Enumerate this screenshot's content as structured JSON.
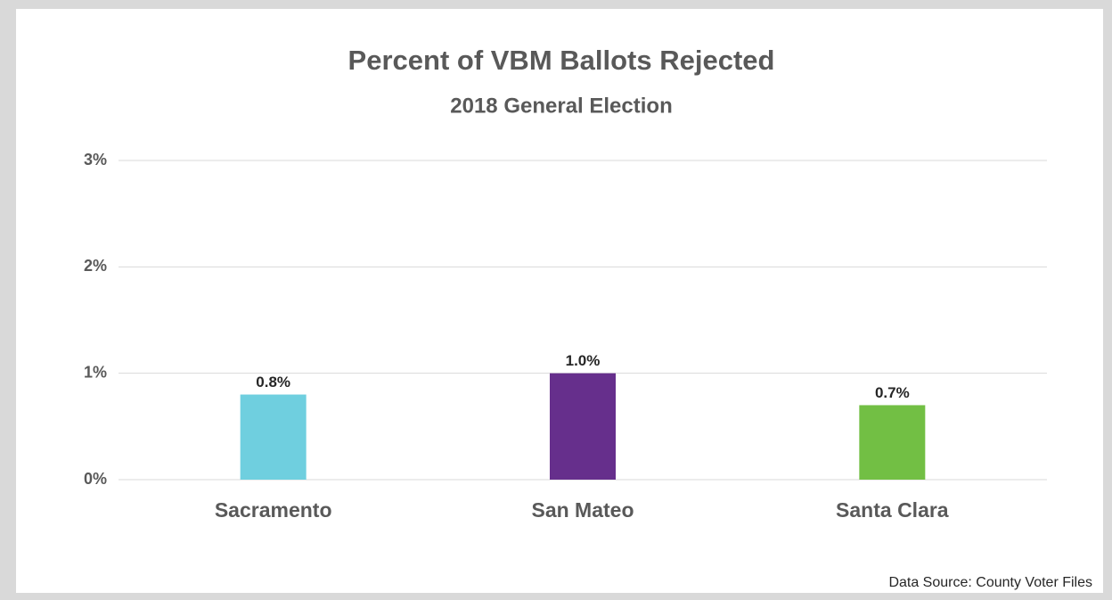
{
  "chart_data": {
    "type": "bar",
    "title": "Percent of VBM Ballots Rejected",
    "subtitle": "2018 General Election",
    "categories": [
      "Sacramento",
      "San Mateo",
      "Santa Clara"
    ],
    "values": [
      0.8,
      1.0,
      0.7
    ],
    "value_labels": [
      "0.8%",
      "1.0%",
      "0.7%"
    ],
    "colors": [
      "#6fcfdf",
      "#662f8c",
      "#72bf44"
    ],
    "ylim": [
      0,
      3
    ],
    "yticks": [
      {
        "value": 0,
        "label": "0%"
      },
      {
        "value": 1,
        "label": "1%"
      },
      {
        "value": 2,
        "label": "2%"
      },
      {
        "value": 3,
        "label": "3%"
      }
    ],
    "grid": true,
    "source": "Data Source: County Voter Files"
  }
}
